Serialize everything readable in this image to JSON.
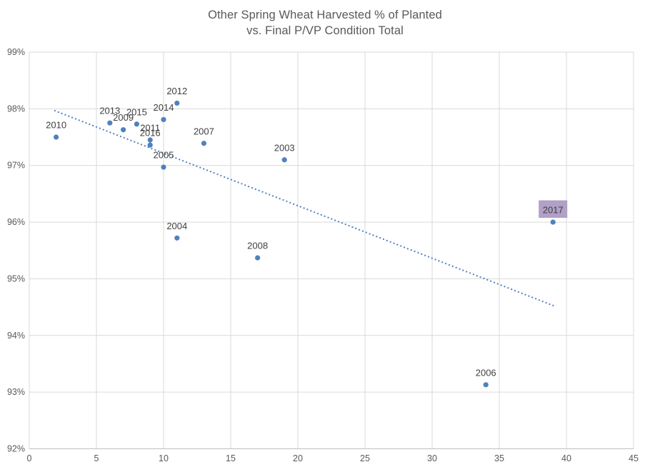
{
  "chart_data": {
    "type": "scatter",
    "title_line1": "Other Spring Wheat Harvested % of Planted",
    "title_line2": "vs. Final P/VP Condition Total",
    "xlabel": "",
    "ylabel": "",
    "legend": "none",
    "grid": true,
    "x_axis": {
      "min": 0,
      "max": 45,
      "step": 5,
      "tick_labels": [
        "0",
        "5",
        "10",
        "15",
        "20",
        "25",
        "30",
        "35",
        "40",
        "45"
      ]
    },
    "y_axis": {
      "min": 92,
      "max": 99,
      "step": 1,
      "tick_labels": [
        "92%",
        "93%",
        "94%",
        "95%",
        "96%",
        "97%",
        "98%",
        "99%"
      ]
    },
    "points": [
      {
        "label": "2003",
        "x": 19,
        "y": 97.1,
        "highlighted": false
      },
      {
        "label": "2004",
        "x": 11,
        "y": 95.72,
        "highlighted": false
      },
      {
        "label": "2005",
        "x": 10,
        "y": 96.97,
        "highlighted": false
      },
      {
        "label": "2006",
        "x": 34,
        "y": 93.13,
        "highlighted": false
      },
      {
        "label": "2007",
        "x": 13,
        "y": 97.39,
        "highlighted": false
      },
      {
        "label": "2008",
        "x": 17,
        "y": 95.37,
        "highlighted": false
      },
      {
        "label": "2009",
        "x": 7,
        "y": 97.63,
        "highlighted": false
      },
      {
        "label": "2010",
        "x": 2,
        "y": 97.5,
        "highlighted": false
      },
      {
        "label": "2011",
        "x": 9,
        "y": 97.45,
        "highlighted": false
      },
      {
        "label": "2012",
        "x": 11,
        "y": 98.1,
        "highlighted": false
      },
      {
        "label": "2013",
        "x": 6,
        "y": 97.75,
        "highlighted": false
      },
      {
        "label": "2014",
        "x": 10,
        "y": 97.81,
        "highlighted": false
      },
      {
        "label": "2015",
        "x": 8,
        "y": 97.73,
        "highlighted": false
      },
      {
        "label": "2016",
        "x": 9,
        "y": 97.36,
        "highlighted": false
      },
      {
        "label": "2017",
        "x": 39,
        "y": 96.0,
        "highlighted": true
      }
    ],
    "trendline": {
      "style": "dotted",
      "x_start": 1.86,
      "y_start": 97.97,
      "x_end": 39.1,
      "y_end": 94.52
    },
    "colors": {
      "marker": "#4f81bd",
      "trendline": "#4f81bd",
      "highlight_box": "#b1a0c7",
      "title_text": "#595959",
      "axis_text": "#595959",
      "point_label_text": "#3f3f3f",
      "gridline": "#d9d9d9",
      "axis_line": "#bfbfbf",
      "background": "#ffffff"
    }
  }
}
